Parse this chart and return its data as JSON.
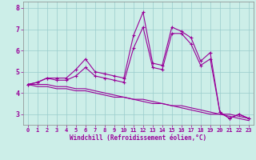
{
  "xlabel": "Windchill (Refroidissement éolien,°C)",
  "x": [
    0,
    1,
    2,
    3,
    4,
    5,
    6,
    7,
    8,
    9,
    10,
    11,
    12,
    13,
    14,
    15,
    16,
    17,
    18,
    19,
    20,
    21,
    22,
    23
  ],
  "line1": [
    4.4,
    4.5,
    4.7,
    4.7,
    4.7,
    5.1,
    5.6,
    5.0,
    4.9,
    4.8,
    4.7,
    6.7,
    7.8,
    5.4,
    5.3,
    7.1,
    6.9,
    6.6,
    5.5,
    5.9,
    3.1,
    2.8,
    3.0,
    2.8
  ],
  "line2": [
    4.4,
    4.5,
    4.7,
    4.6,
    4.6,
    4.8,
    5.2,
    4.8,
    4.7,
    4.6,
    4.5,
    6.1,
    7.1,
    5.2,
    5.1,
    6.8,
    6.8,
    6.3,
    5.3,
    5.6,
    3.1,
    2.8,
    3.0,
    2.8
  ],
  "line3": [
    4.4,
    4.4,
    4.4,
    4.3,
    4.3,
    4.2,
    4.2,
    4.1,
    4.0,
    3.9,
    3.8,
    3.7,
    3.7,
    3.6,
    3.5,
    3.4,
    3.4,
    3.3,
    3.2,
    3.1,
    3.0,
    3.0,
    2.9,
    2.8
  ],
  "line4": [
    4.4,
    4.3,
    4.3,
    4.2,
    4.2,
    4.1,
    4.1,
    4.0,
    3.9,
    3.8,
    3.8,
    3.7,
    3.6,
    3.5,
    3.5,
    3.4,
    3.3,
    3.2,
    3.1,
    3.0,
    3.0,
    2.9,
    2.8,
    2.7
  ],
  "bg_color": "#cceee8",
  "line_color": "#990099",
  "grid_color": "#99cccc",
  "ylim": [
    2.5,
    8.3
  ],
  "xlim": [
    -0.5,
    23.5
  ],
  "yticks": [
    3,
    4,
    5,
    6,
    7,
    8
  ],
  "xticks": [
    0,
    1,
    2,
    3,
    4,
    5,
    6,
    7,
    8,
    9,
    10,
    11,
    12,
    13,
    14,
    15,
    16,
    17,
    18,
    19,
    20,
    21,
    22,
    23
  ],
  "marker": "+",
  "markersize": 3,
  "linewidth": 0.8,
  "tick_fontsize": 5,
  "xlabel_fontsize": 5.5
}
